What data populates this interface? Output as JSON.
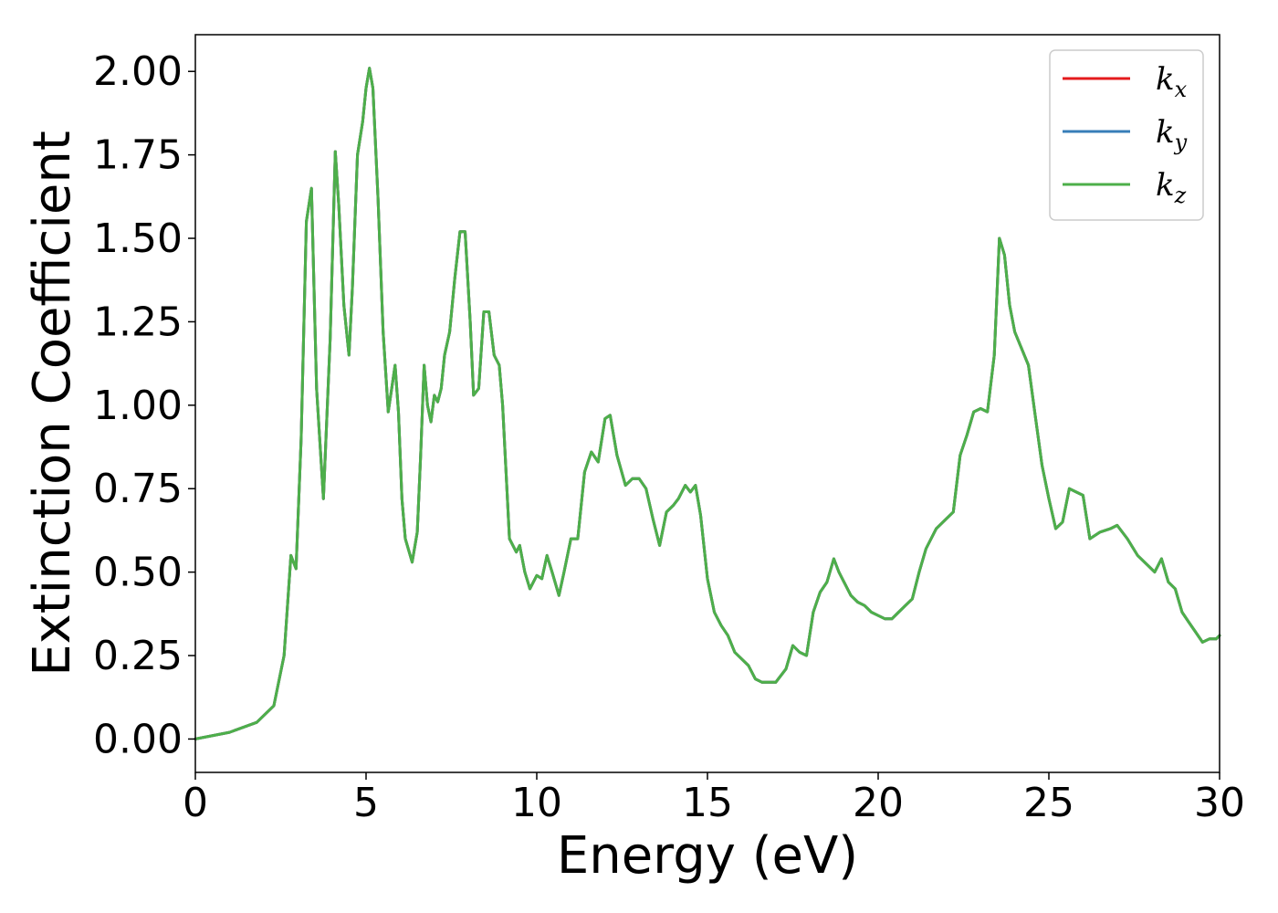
{
  "chart_data": {
    "type": "line",
    "xlabel": "Energy (eV)",
    "ylabel": "Extinction Coefficient",
    "xlim": [
      0,
      30
    ],
    "ylim": [
      -0.1,
      2.11
    ],
    "xticks": [
      "0",
      "5",
      "10",
      "15",
      "20",
      "25",
      "30"
    ],
    "yticks": [
      "0.00",
      "0.25",
      "0.50",
      "0.75",
      "1.00",
      "1.25",
      "1.50",
      "1.75",
      "2.00"
    ],
    "grid": false,
    "legend_position": "top-right",
    "legend": [
      {
        "base": "k",
        "sub": "x",
        "color": "#e41a1c"
      },
      {
        "base": "k",
        "sub": "y",
        "color": "#377eb8"
      },
      {
        "base": "k",
        "sub": "z",
        "color": "#4daf4a"
      }
    ],
    "series": [
      {
        "name": "k_x",
        "color": "#e41a1c",
        "x": [
          0,
          1,
          1.8,
          2.3,
          2.6,
          2.8,
          2.95,
          3.1,
          3.25,
          3.4,
          3.55,
          3.75,
          3.95,
          4.1,
          4.2,
          4.35,
          4.5,
          4.6,
          4.75,
          4.9,
          5.0,
          5.1,
          5.2,
          5.35,
          5.5,
          5.65,
          5.75,
          5.85,
          5.95,
          6.05,
          6.15,
          6.35,
          6.5,
          6.6,
          6.7,
          6.8,
          6.9,
          7.0,
          7.1,
          7.2,
          7.3,
          7.45,
          7.6,
          7.75,
          7.9,
          8.05,
          8.15,
          8.3,
          8.45,
          8.6,
          8.75,
          8.9,
          9.0,
          9.2,
          9.4,
          9.5,
          9.65,
          9.8,
          10.0,
          10.15,
          10.3,
          10.45,
          10.65,
          10.8,
          11.0,
          11.2,
          11.4,
          11.6,
          11.8,
          12.0,
          12.15,
          12.35,
          12.6,
          12.8,
          13.0,
          13.2,
          13.4,
          13.6,
          13.8,
          14.0,
          14.15,
          14.35,
          14.5,
          14.65,
          14.8,
          15.0,
          15.2,
          15.4,
          15.6,
          15.8,
          16.0,
          16.2,
          16.4,
          16.6,
          16.8,
          17.0,
          17.3,
          17.5,
          17.7,
          17.9,
          18.1,
          18.3,
          18.5,
          18.7,
          18.85,
          19.0,
          19.2,
          19.4,
          19.6,
          19.8,
          20.0,
          20.2,
          20.4,
          20.6,
          20.8,
          21.0,
          21.2,
          21.4,
          21.7,
          22.0,
          22.2,
          22.4,
          22.6,
          22.8,
          23.0,
          23.2,
          23.4,
          23.55,
          23.7,
          23.85,
          24.0,
          24.2,
          24.4,
          24.6,
          24.8,
          25.0,
          25.2,
          25.4,
          25.6,
          25.8,
          26.0,
          26.2,
          26.5,
          26.8,
          27.0,
          27.3,
          27.6,
          27.9,
          28.1,
          28.3,
          28.5,
          28.7,
          28.9,
          29.1,
          29.3,
          29.5,
          29.7,
          29.9,
          30.0
        ],
        "y": [
          0.0,
          0.02,
          0.05,
          0.1,
          0.25,
          0.55,
          0.51,
          0.9,
          1.55,
          1.65,
          1.05,
          0.72,
          1.2,
          1.76,
          1.6,
          1.3,
          1.15,
          1.35,
          1.75,
          1.85,
          1.95,
          2.01,
          1.95,
          1.62,
          1.22,
          0.98,
          1.05,
          1.12,
          0.98,
          0.72,
          0.6,
          0.53,
          0.62,
          0.85,
          1.12,
          1.0,
          0.95,
          1.03,
          1.01,
          1.05,
          1.15,
          1.22,
          1.38,
          1.52,
          1.52,
          1.25,
          1.03,
          1.05,
          1.28,
          1.28,
          1.15,
          1.12,
          1.0,
          0.6,
          0.56,
          0.58,
          0.5,
          0.45,
          0.49,
          0.48,
          0.55,
          0.5,
          0.43,
          0.5,
          0.6,
          0.6,
          0.8,
          0.86,
          0.83,
          0.96,
          0.97,
          0.85,
          0.76,
          0.78,
          0.78,
          0.75,
          0.66,
          0.58,
          0.68,
          0.7,
          0.72,
          0.76,
          0.74,
          0.76,
          0.67,
          0.48,
          0.38,
          0.34,
          0.31,
          0.26,
          0.24,
          0.22,
          0.18,
          0.17,
          0.17,
          0.17,
          0.21,
          0.28,
          0.26,
          0.25,
          0.38,
          0.44,
          0.47,
          0.54,
          0.5,
          0.47,
          0.43,
          0.41,
          0.4,
          0.38,
          0.37,
          0.36,
          0.36,
          0.38,
          0.4,
          0.42,
          0.5,
          0.57,
          0.63,
          0.66,
          0.68,
          0.85,
          0.91,
          0.98,
          0.99,
          0.98,
          1.15,
          1.5,
          1.45,
          1.3,
          1.22,
          1.17,
          1.12,
          0.97,
          0.82,
          0.72,
          0.63,
          0.65,
          0.75,
          0.74,
          0.73,
          0.6,
          0.62,
          0.63,
          0.64,
          0.6,
          0.55,
          0.52,
          0.5,
          0.54,
          0.47,
          0.45,
          0.38,
          0.35,
          0.32,
          0.29,
          0.3,
          0.3,
          0.31
        ]
      },
      {
        "name": "k_y",
        "color": "#377eb8",
        "x": [
          0,
          1,
          1.8,
          2.3,
          2.6,
          2.8,
          2.95,
          3.1,
          3.25,
          3.4,
          3.55,
          3.75,
          3.95,
          4.1,
          4.2,
          4.35,
          4.5,
          4.6,
          4.75,
          4.9,
          5.0,
          5.1,
          5.2,
          5.35,
          5.5,
          5.65,
          5.75,
          5.85,
          5.95,
          6.05,
          6.15,
          6.35,
          6.5,
          6.6,
          6.7,
          6.8,
          6.9,
          7.0,
          7.1,
          7.2,
          7.3,
          7.45,
          7.6,
          7.75,
          7.9,
          8.05,
          8.15,
          8.3,
          8.45,
          8.6,
          8.75,
          8.9,
          9.0,
          9.2,
          9.4,
          9.5,
          9.65,
          9.8,
          10.0,
          10.15,
          10.3,
          10.45,
          10.65,
          10.8,
          11.0,
          11.2,
          11.4,
          11.6,
          11.8,
          12.0,
          12.15,
          12.35,
          12.6,
          12.8,
          13.0,
          13.2,
          13.4,
          13.6,
          13.8,
          14.0,
          14.15,
          14.35,
          14.5,
          14.65,
          14.8,
          15.0,
          15.2,
          15.4,
          15.6,
          15.8,
          16.0,
          16.2,
          16.4,
          16.6,
          16.8,
          17.0,
          17.3,
          17.5,
          17.7,
          17.9,
          18.1,
          18.3,
          18.5,
          18.7,
          18.85,
          19.0,
          19.2,
          19.4,
          19.6,
          19.8,
          20.0,
          20.2,
          20.4,
          20.6,
          20.8,
          21.0,
          21.2,
          21.4,
          21.7,
          22.0,
          22.2,
          22.4,
          22.6,
          22.8,
          23.0,
          23.2,
          23.4,
          23.55,
          23.7,
          23.85,
          24.0,
          24.2,
          24.4,
          24.6,
          24.8,
          25.0,
          25.2,
          25.4,
          25.6,
          25.8,
          26.0,
          26.2,
          26.5,
          26.8,
          27.0,
          27.3,
          27.6,
          27.9,
          28.1,
          28.3,
          28.5,
          28.7,
          28.9,
          29.1,
          29.3,
          29.5,
          29.7,
          29.9,
          30.0
        ],
        "y": [
          0.0,
          0.02,
          0.05,
          0.1,
          0.25,
          0.55,
          0.51,
          0.9,
          1.55,
          1.65,
          1.05,
          0.72,
          1.2,
          1.76,
          1.6,
          1.3,
          1.15,
          1.35,
          1.75,
          1.85,
          1.95,
          2.01,
          1.95,
          1.62,
          1.22,
          0.98,
          1.05,
          1.12,
          0.98,
          0.72,
          0.6,
          0.53,
          0.62,
          0.85,
          1.12,
          1.0,
          0.95,
          1.03,
          1.01,
          1.05,
          1.15,
          1.22,
          1.38,
          1.52,
          1.52,
          1.25,
          1.03,
          1.05,
          1.28,
          1.28,
          1.15,
          1.12,
          1.0,
          0.6,
          0.56,
          0.58,
          0.5,
          0.45,
          0.49,
          0.48,
          0.55,
          0.5,
          0.43,
          0.5,
          0.6,
          0.6,
          0.8,
          0.86,
          0.83,
          0.96,
          0.97,
          0.85,
          0.76,
          0.78,
          0.78,
          0.75,
          0.66,
          0.58,
          0.68,
          0.7,
          0.72,
          0.76,
          0.74,
          0.76,
          0.67,
          0.48,
          0.38,
          0.34,
          0.31,
          0.26,
          0.24,
          0.22,
          0.18,
          0.17,
          0.17,
          0.17,
          0.21,
          0.28,
          0.26,
          0.25,
          0.38,
          0.44,
          0.47,
          0.54,
          0.5,
          0.47,
          0.43,
          0.41,
          0.4,
          0.38,
          0.37,
          0.36,
          0.36,
          0.38,
          0.4,
          0.42,
          0.5,
          0.57,
          0.63,
          0.66,
          0.68,
          0.85,
          0.91,
          0.98,
          0.99,
          0.98,
          1.15,
          1.5,
          1.45,
          1.3,
          1.22,
          1.17,
          1.12,
          0.97,
          0.82,
          0.72,
          0.63,
          0.65,
          0.75,
          0.74,
          0.73,
          0.6,
          0.62,
          0.63,
          0.64,
          0.6,
          0.55,
          0.52,
          0.5,
          0.54,
          0.47,
          0.45,
          0.38,
          0.35,
          0.32,
          0.29,
          0.3,
          0.3,
          0.31
        ]
      },
      {
        "name": "k_z",
        "color": "#4daf4a",
        "x": [
          0,
          1,
          1.8,
          2.3,
          2.6,
          2.8,
          2.95,
          3.1,
          3.25,
          3.4,
          3.55,
          3.75,
          3.95,
          4.1,
          4.2,
          4.35,
          4.5,
          4.6,
          4.75,
          4.9,
          5.0,
          5.1,
          5.2,
          5.35,
          5.5,
          5.65,
          5.75,
          5.85,
          5.95,
          6.05,
          6.15,
          6.35,
          6.5,
          6.6,
          6.7,
          6.8,
          6.9,
          7.0,
          7.1,
          7.2,
          7.3,
          7.45,
          7.6,
          7.75,
          7.9,
          8.05,
          8.15,
          8.3,
          8.45,
          8.6,
          8.75,
          8.9,
          9.0,
          9.2,
          9.4,
          9.5,
          9.65,
          9.8,
          10.0,
          10.15,
          10.3,
          10.45,
          10.65,
          10.8,
          11.0,
          11.2,
          11.4,
          11.6,
          11.8,
          12.0,
          12.15,
          12.35,
          12.6,
          12.8,
          13.0,
          13.2,
          13.4,
          13.6,
          13.8,
          14.0,
          14.15,
          14.35,
          14.5,
          14.65,
          14.8,
          15.0,
          15.2,
          15.4,
          15.6,
          15.8,
          16.0,
          16.2,
          16.4,
          16.6,
          16.8,
          17.0,
          17.3,
          17.5,
          17.7,
          17.9,
          18.1,
          18.3,
          18.5,
          18.7,
          18.85,
          19.0,
          19.2,
          19.4,
          19.6,
          19.8,
          20.0,
          20.2,
          20.4,
          20.6,
          20.8,
          21.0,
          21.2,
          21.4,
          21.7,
          22.0,
          22.2,
          22.4,
          22.6,
          22.8,
          23.0,
          23.2,
          23.4,
          23.55,
          23.7,
          23.85,
          24.0,
          24.2,
          24.4,
          24.6,
          24.8,
          25.0,
          25.2,
          25.4,
          25.6,
          25.8,
          26.0,
          26.2,
          26.5,
          26.8,
          27.0,
          27.3,
          27.6,
          27.9,
          28.1,
          28.3,
          28.5,
          28.7,
          28.9,
          29.1,
          29.3,
          29.5,
          29.7,
          29.9,
          30.0
        ],
        "y": [
          0.0,
          0.02,
          0.05,
          0.1,
          0.25,
          0.55,
          0.51,
          0.9,
          1.55,
          1.65,
          1.05,
          0.72,
          1.2,
          1.76,
          1.6,
          1.3,
          1.15,
          1.35,
          1.75,
          1.85,
          1.95,
          2.01,
          1.95,
          1.62,
          1.22,
          0.98,
          1.05,
          1.12,
          0.98,
          0.72,
          0.6,
          0.53,
          0.62,
          0.85,
          1.12,
          1.0,
          0.95,
          1.03,
          1.01,
          1.05,
          1.15,
          1.22,
          1.38,
          1.52,
          1.52,
          1.25,
          1.03,
          1.05,
          1.28,
          1.28,
          1.15,
          1.12,
          1.0,
          0.6,
          0.56,
          0.58,
          0.5,
          0.45,
          0.49,
          0.48,
          0.55,
          0.5,
          0.43,
          0.5,
          0.6,
          0.6,
          0.8,
          0.86,
          0.83,
          0.96,
          0.97,
          0.85,
          0.76,
          0.78,
          0.78,
          0.75,
          0.66,
          0.58,
          0.68,
          0.7,
          0.72,
          0.76,
          0.74,
          0.76,
          0.67,
          0.48,
          0.38,
          0.34,
          0.31,
          0.26,
          0.24,
          0.22,
          0.18,
          0.17,
          0.17,
          0.17,
          0.21,
          0.28,
          0.26,
          0.25,
          0.38,
          0.44,
          0.47,
          0.54,
          0.5,
          0.47,
          0.43,
          0.41,
          0.4,
          0.38,
          0.37,
          0.36,
          0.36,
          0.38,
          0.4,
          0.42,
          0.5,
          0.57,
          0.63,
          0.66,
          0.68,
          0.85,
          0.91,
          0.98,
          0.99,
          0.98,
          1.15,
          1.5,
          1.45,
          1.3,
          1.22,
          1.17,
          1.12,
          0.97,
          0.82,
          0.72,
          0.63,
          0.65,
          0.75,
          0.74,
          0.73,
          0.6,
          0.62,
          0.63,
          0.64,
          0.6,
          0.55,
          0.52,
          0.5,
          0.54,
          0.47,
          0.45,
          0.38,
          0.35,
          0.32,
          0.29,
          0.3,
          0.3,
          0.31
        ]
      }
    ]
  }
}
